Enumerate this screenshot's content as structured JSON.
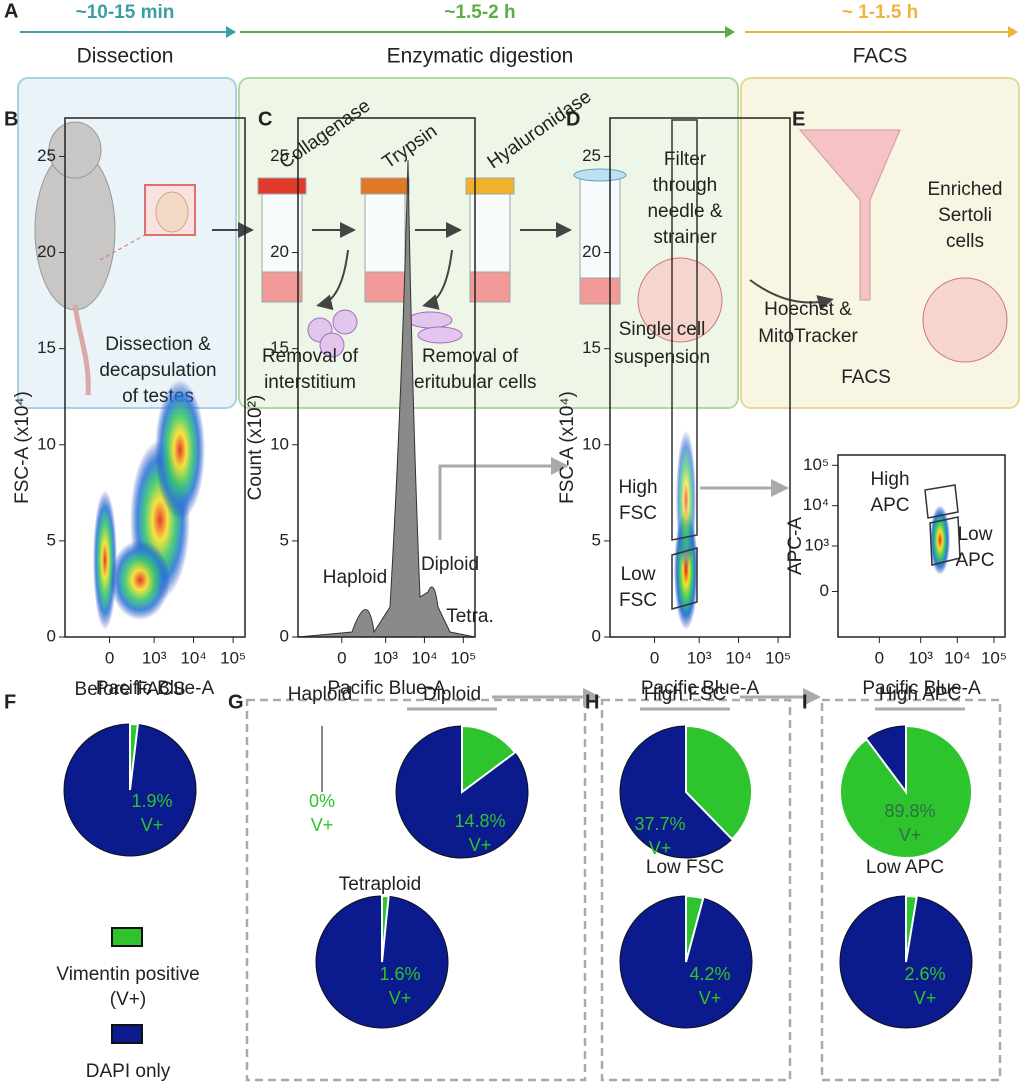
{
  "panel_labels": [
    "A",
    "B",
    "C",
    "D",
    "E",
    "F",
    "G",
    "H",
    "I"
  ],
  "workflow": {
    "stages": [
      {
        "time": "~10-15 min",
        "name": "Dissection",
        "color": "#3a9ea5"
      },
      {
        "time": "~1.5-2 h",
        "name": "Enzymatic digestion",
        "color": "#5cae44"
      },
      {
        "time": "~ 1-1.5 h",
        "name": "FACS",
        "color": "#f0b43c"
      }
    ],
    "enzymes": [
      "Collagenase",
      "Trypsin",
      "Hyaluronidase"
    ],
    "notes": [
      {
        "lines": [
          "Dissection &",
          "decapsulation",
          "of testes"
        ]
      },
      {
        "lines": [
          "Removal of",
          "interstitium"
        ]
      },
      {
        "lines": [
          "Removal of",
          "peritubular cells"
        ]
      },
      {
        "lines": [
          "Filter",
          "through",
          "needle &",
          "strainer"
        ]
      },
      {
        "lines": [
          "Single cell",
          "suspension"
        ]
      },
      {
        "lines": [
          "Hoechst &",
          "MitoTracker"
        ]
      },
      {
        "lines": [
          "Enriched",
          "Sertoli",
          "cells"
        ]
      },
      {
        "lines": [
          "FACS"
        ]
      }
    ]
  },
  "flow_plots": [
    {
      "x_label": "Pacific Blue-A",
      "y_label": "FSC-A (x10⁴)",
      "xscale": "biexponential",
      "xlim": [
        -1000,
        200000
      ],
      "xticks": [
        0,
        {
          "value": 1000,
          "label": "10³"
        },
        {
          "value": 10000,
          "label": "10⁴"
        },
        {
          "value": 100000,
          "label": "10⁵"
        }
      ],
      "ylim": [
        0,
        27
      ],
      "yticks": [
        0,
        5,
        10,
        15,
        20,
        25
      ],
      "annotations": []
    },
    {
      "x_label": "Pacific Blue-A",
      "y_label": "Count (x10²)",
      "xscale": "biexponential",
      "xlim": [
        -1000,
        200000
      ],
      "xticks": [
        0,
        {
          "value": 1000,
          "label": "10³"
        },
        {
          "value": 10000,
          "label": "10⁴"
        },
        {
          "value": 100000,
          "label": "10⁵"
        }
      ],
      "ylim": [
        0,
        27
      ],
      "yticks": [
        0,
        5,
        10,
        15,
        20,
        25
      ],
      "annotations": [
        {
          "lines": [
            "Haploid"
          ]
        },
        {
          "lines": [
            "Diploid"
          ]
        },
        {
          "lines": [
            "Tetra."
          ]
        }
      ]
    },
    {
      "x_label": "Pacific Blue-A",
      "y_label": "FSC-A (x10⁴)",
      "xscale": "biexponential",
      "xlim": [
        -1000,
        200000
      ],
      "xticks": [
        0,
        {
          "value": 1000,
          "label": "10³"
        },
        {
          "value": 10000,
          "label": "10⁴"
        },
        {
          "value": 100000,
          "label": "10⁵"
        }
      ],
      "ylim": [
        0,
        27
      ],
      "yticks": [
        0,
        5,
        10,
        15,
        20,
        25
      ],
      "annotations": [
        {
          "lines": [
            "High",
            "FSC"
          ]
        },
        {
          "lines": [
            "Low",
            "FSC"
          ]
        }
      ]
    },
    {
      "x_label": "Pacific Blue-A",
      "y_label": "APC-A",
      "xscale": "biexponential",
      "yscale": "biexponential",
      "xlim": [
        -1000,
        200000
      ],
      "xticks": [
        0,
        {
          "value": 1000,
          "label": "10³"
        },
        {
          "value": 10000,
          "label": "10⁴"
        },
        {
          "value": 100000,
          "label": "10⁵"
        }
      ],
      "ylim": [
        -1000,
        180000
      ],
      "yticks": [
        0,
        {
          "value": 1000,
          "label": "10³"
        },
        {
          "value": 10000,
          "label": "10⁴"
        },
        {
          "value": 100000,
          "label": "10⁵"
        }
      ],
      "annotations": [
        {
          "lines": [
            "High",
            "APC"
          ]
        },
        {
          "lines": [
            "Low",
            "APC"
          ]
        }
      ]
    }
  ],
  "pies": [
    {
      "title": "Before FACS",
      "value": 1.9,
      "value_label": "1.9%",
      "sub": "V+"
    },
    {
      "title": "Haploid",
      "value": 0,
      "value_label": "0%",
      "sub": "V+"
    },
    {
      "title": "Diploid",
      "value": 14.8,
      "value_label": "14.8%",
      "sub": "V+"
    },
    {
      "title": "Tetraploid",
      "value": 1.6,
      "value_label": "1.6%",
      "sub": "V+"
    },
    {
      "title": "High FSC",
      "value": 37.7,
      "value_label": "37.7%",
      "sub": "V+"
    },
    {
      "title": "Low FSC",
      "value": 4.2,
      "value_label": "4.2%",
      "sub": "V+"
    },
    {
      "title": "High APC",
      "value": 89.8,
      "value_label": "89.8%",
      "sub": "V+"
    },
    {
      "title": "Low APC",
      "value": 2.6,
      "value_label": "2.6%",
      "sub": "V+"
    }
  ],
  "legend": [
    {
      "lines": [
        "Vimentin positive",
        "(V+)"
      ],
      "color": "#2dc42d"
    },
    {
      "lines": [
        "DAPI only"
      ],
      "color": "#0b1a8c"
    }
  ]
}
